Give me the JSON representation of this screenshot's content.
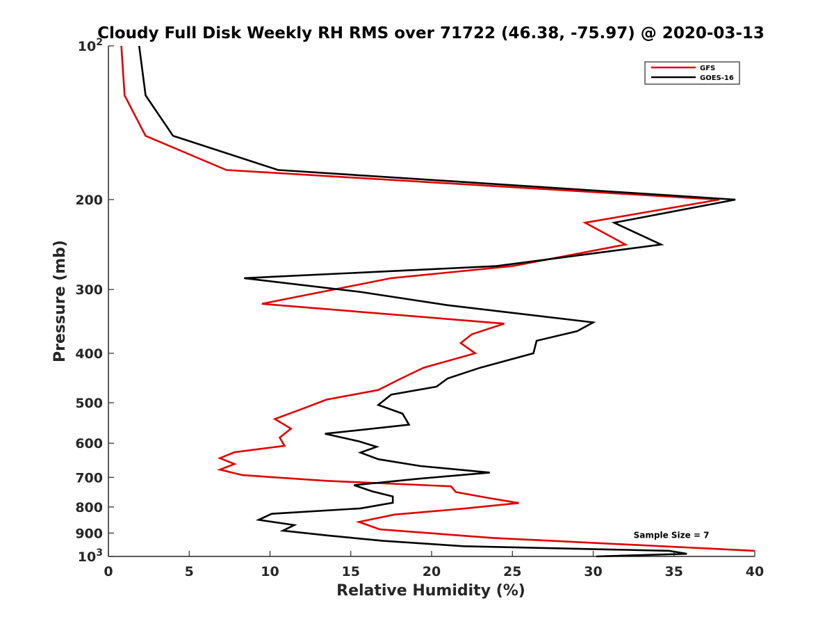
{
  "chart_data": {
    "type": "line",
    "title": "Cloudy Full Disk Weekly RH RMS over 71722 (46.38, -75.97) @ 2020-03-13",
    "xlabel": "Relative Humidity (%)",
    "ylabel": "Pressure (mb)",
    "xlim": [
      0,
      40
    ],
    "ylim": [
      100,
      1000
    ],
    "yscale": "log",
    "yreverse": true,
    "grid": false,
    "legend_position": "top-right",
    "x_ticks": [
      0,
      5,
      10,
      15,
      20,
      25,
      30,
      35,
      40
    ],
    "x_tick_labels": [
      "0",
      "5",
      "10",
      "15",
      "20",
      "25",
      "30",
      "35",
      "40"
    ],
    "y_ticks": [
      100,
      200,
      300,
      400,
      500,
      600,
      700,
      800,
      900,
      1000
    ],
    "y_tick_labels": [
      {
        "base": "10",
        "sup": "2"
      },
      {
        "base": "200",
        "sup": ""
      },
      {
        "base": "300",
        "sup": ""
      },
      {
        "base": "400",
        "sup": ""
      },
      {
        "base": "500",
        "sup": ""
      },
      {
        "base": "600",
        "sup": ""
      },
      {
        "base": "700",
        "sup": ""
      },
      {
        "base": "800",
        "sup": ""
      },
      {
        "base": "900",
        "sup": ""
      },
      {
        "base": "10",
        "sup": "3"
      }
    ],
    "series": [
      {
        "name": "GFS",
        "color": "#e00000",
        "points": [
          [
            0.8,
            100
          ],
          [
            1.0,
            125
          ],
          [
            2.3,
            150
          ],
          [
            7.3,
            175
          ],
          [
            37.8,
            200
          ],
          [
            29.5,
            222
          ],
          [
            32.0,
            245
          ],
          [
            25.0,
            270
          ],
          [
            17.5,
            285
          ],
          [
            9.5,
            320
          ],
          [
            24.5,
            350
          ],
          [
            22.5,
            367
          ],
          [
            21.8,
            382
          ],
          [
            22.7,
            400
          ],
          [
            19.5,
            427
          ],
          [
            18.0,
            450
          ],
          [
            16.7,
            472
          ],
          [
            13.5,
            493
          ],
          [
            12.0,
            514
          ],
          [
            10.3,
            538
          ],
          [
            11.3,
            562
          ],
          [
            10.6,
            585
          ],
          [
            10.9,
            607
          ],
          [
            7.8,
            625
          ],
          [
            6.9,
            642
          ],
          [
            7.8,
            659
          ],
          [
            6.9,
            676
          ],
          [
            8.3,
            693
          ],
          [
            13.5,
            711
          ],
          [
            21.2,
            729
          ],
          [
            21.5,
            748
          ],
          [
            23.5,
            768
          ],
          [
            25.4,
            786
          ],
          [
            22.0,
            806
          ],
          [
            17.7,
            828
          ],
          [
            15.5,
            856
          ],
          [
            16.8,
            885
          ],
          [
            23.8,
            920
          ],
          [
            40.0,
            975
          ]
        ]
      },
      {
        "name": "GOES-16",
        "color": "#000000",
        "points": [
          [
            1.9,
            100
          ],
          [
            2.3,
            125
          ],
          [
            4.0,
            150
          ],
          [
            10.5,
            175
          ],
          [
            38.8,
            200
          ],
          [
            31.3,
            222
          ],
          [
            34.2,
            245
          ],
          [
            24.0,
            270
          ],
          [
            8.4,
            285
          ],
          [
            15.5,
            303
          ],
          [
            21.0,
            322
          ],
          [
            30.0,
            348
          ],
          [
            29.0,
            362
          ],
          [
            26.5,
            378
          ],
          [
            26.3,
            400
          ],
          [
            23.0,
            427
          ],
          [
            21.0,
            448
          ],
          [
            20.3,
            465
          ],
          [
            17.5,
            482
          ],
          [
            16.7,
            505
          ],
          [
            18.2,
            525
          ],
          [
            18.6,
            552
          ],
          [
            13.4,
            575
          ],
          [
            15.5,
            595
          ],
          [
            16.6,
            610
          ],
          [
            15.6,
            626
          ],
          [
            16.7,
            645
          ],
          [
            19.3,
            665
          ],
          [
            23.6,
            685
          ],
          [
            19.3,
            704
          ],
          [
            15.2,
            725
          ],
          [
            16.3,
            745
          ],
          [
            17.6,
            763
          ],
          [
            17.6,
            785
          ],
          [
            15.6,
            805
          ],
          [
            10.1,
            825
          ],
          [
            9.3,
            848
          ],
          [
            11.5,
            868
          ],
          [
            10.8,
            890
          ],
          [
            13.6,
            910
          ],
          [
            17.0,
            932
          ],
          [
            22.0,
            955
          ],
          [
            34.7,
            975
          ],
          [
            35.8,
            988
          ],
          [
            30.2,
            1000
          ]
        ]
      }
    ],
    "annotations": [
      {
        "text": "Sample Size = 7",
        "x": 32.5,
        "y": 920
      }
    ]
  }
}
